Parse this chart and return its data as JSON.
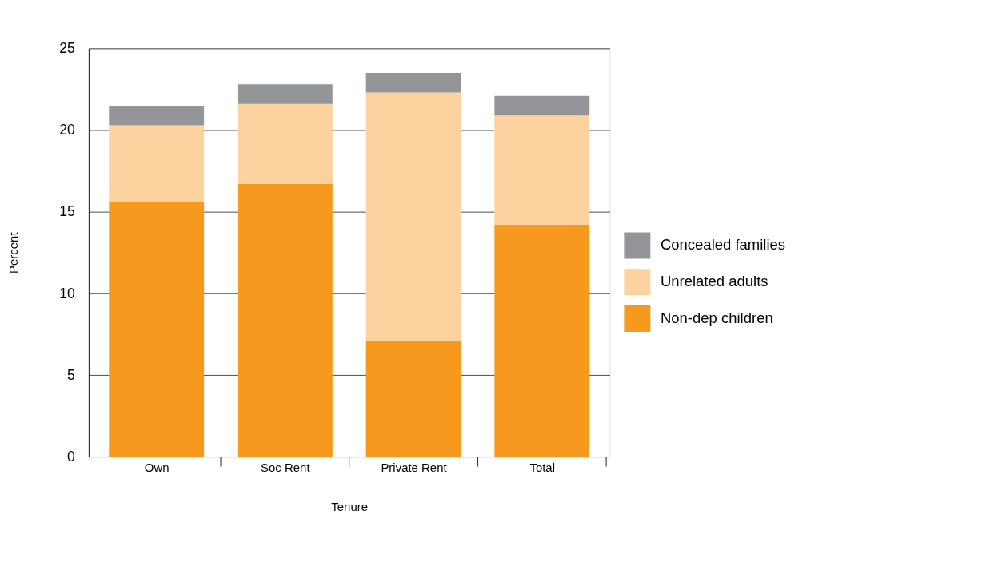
{
  "chart_data": {
    "type": "bar",
    "stacked": true,
    "xlabel": "Tenure",
    "ylabel": "Percent",
    "categories": [
      "Own",
      "Soc Rent",
      "Private Rent",
      "Total"
    ],
    "series": [
      {
        "name": "Non-dep children",
        "color": "#f7991f",
        "values": [
          15.6,
          16.7,
          7.1,
          14.2
        ]
      },
      {
        "name": "Unrelated adults",
        "color": "#fcd29f",
        "values": [
          4.7,
          4.9,
          15.2,
          6.7
        ]
      },
      {
        "name": "Concealed families",
        "color": "#939598",
        "values": [
          1.2,
          1.2,
          1.2,
          1.2
        ]
      }
    ],
    "ylim": [
      0,
      25
    ],
    "yticks": [
      0,
      5,
      10,
      15,
      20,
      25
    ],
    "grid": "y",
    "legend": "right"
  }
}
